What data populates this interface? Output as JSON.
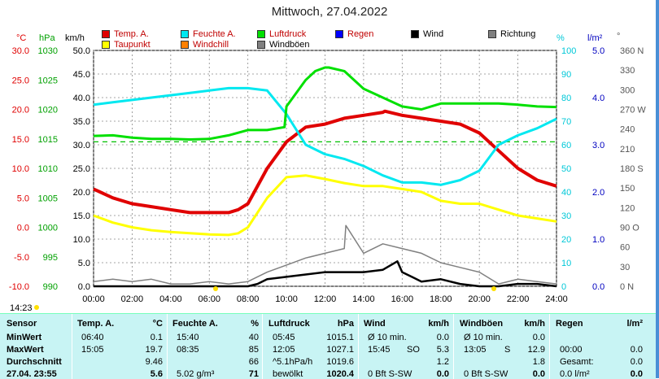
{
  "title": "Mittwoch, 27.04.2022",
  "legend": [
    {
      "label": "Temp. A.",
      "color": "#e00000"
    },
    {
      "label": "Feuchte A.",
      "color": "#00e8f0"
    },
    {
      "label": "Luftdruck",
      "color": "#00e000"
    },
    {
      "label": "Regen",
      "color": "#0000ff"
    },
    {
      "label": "Wind",
      "color": "#000000"
    },
    {
      "label": "Richtung",
      "color": "#808080"
    },
    {
      "label": "Taupunkt",
      "color": "#ffff00"
    },
    {
      "label": "Windchill",
      "color": "#ff8000"
    },
    {
      "label": "Windböen",
      "color": "#808080"
    }
  ],
  "axis_units": {
    "temp": "°C",
    "press": "hPa",
    "wind": "km/h",
    "hum": "%",
    "rain": "l/m²",
    "dir": "°"
  },
  "axis_ticks": {
    "temp": [
      "30.0",
      "25.0",
      "20.0",
      "15.0",
      "10.0",
      "5.0",
      "0.0",
      "-5.0",
      "-10.0"
    ],
    "press": [
      "1030",
      "1025",
      "1020",
      "1015",
      "1010",
      "1005",
      "1000",
      "995",
      "990"
    ],
    "wind": [
      "50.0",
      "45.0",
      "40.0",
      "35.0",
      "30.0",
      "25.0",
      "20.0",
      "15.0",
      "10.0",
      "5.0",
      "0.0"
    ],
    "hum": [
      "100",
      "90",
      "80",
      "70",
      "60",
      "50",
      "40",
      "30",
      "20",
      "10",
      "0"
    ],
    "rain": [
      "5.0",
      "4.0",
      "3.0",
      "2.0",
      "1.0",
      "0.0"
    ],
    "dir": [
      "360 N",
      "330",
      "300",
      "270 W",
      "240",
      "210",
      "180 S",
      "150",
      "120",
      "90 O",
      "60",
      "30",
      "0 N"
    ],
    "x": [
      "00:00",
      "02:00",
      "04:00",
      "06:00",
      "08:00",
      "10:00",
      "12:00",
      "14:00",
      "16:00",
      "18:00",
      "20:00",
      "22:00",
      "24:00"
    ]
  },
  "sunrise_label": "14:23",
  "chart_data": {
    "type": "line",
    "x_unit": "hour",
    "xlim": [
      0,
      24
    ],
    "series": [
      {
        "name": "Temp. A.",
        "axis": "temp",
        "color": "#e00000",
        "x": [
          0,
          1,
          2,
          3,
          4,
          5,
          6,
          7,
          7.5,
          8,
          9,
          10,
          11,
          12,
          13,
          14,
          15,
          15.1,
          16,
          17,
          18,
          19,
          20,
          21,
          22,
          23,
          24
        ],
        "y": [
          6.5,
          5.0,
          4.0,
          3.5,
          3.0,
          2.5,
          2.5,
          2.5,
          3.0,
          4.0,
          10.0,
          14.5,
          17.0,
          17.5,
          18.5,
          19.0,
          19.5,
          19.7,
          19.0,
          18.5,
          18.0,
          17.5,
          16.0,
          13.0,
          10.0,
          8.0,
          7.0
        ]
      },
      {
        "name": "Taupunkt",
        "axis": "temp",
        "color": "#ffff00",
        "x": [
          0,
          1,
          2,
          3,
          4,
          5,
          6,
          7,
          7.5,
          8,
          9,
          10,
          11,
          12,
          13,
          14,
          15,
          16,
          17,
          18,
          19,
          20,
          21,
          22,
          23,
          24
        ],
        "y": [
          2.0,
          0.8,
          0.0,
          -0.5,
          -0.8,
          -1.0,
          -1.2,
          -1.3,
          -1.0,
          0.0,
          5.0,
          8.5,
          8.8,
          8.2,
          7.5,
          7.0,
          7.0,
          6.5,
          6.0,
          4.5,
          4.0,
          4.0,
          3.0,
          2.0,
          1.5,
          1.0
        ]
      },
      {
        "name": "Feuchte A.",
        "axis": "hum",
        "color": "#00e8f0",
        "x": [
          0,
          1,
          2,
          3,
          4,
          5,
          6,
          7,
          8,
          9,
          10,
          11,
          12,
          13,
          14,
          15,
          16,
          17,
          18,
          19,
          20,
          21,
          22,
          23,
          24
        ],
        "y": [
          77,
          78,
          79,
          80,
          81,
          82,
          83,
          84,
          84,
          83,
          73,
          60,
          56,
          54,
          51,
          47,
          44,
          44,
          43,
          45,
          49,
          60,
          64,
          67,
          71
        ]
      },
      {
        "name": "Luftdruck",
        "axis": "press",
        "color": "#00e000",
        "x": [
          0,
          1,
          2,
          3,
          4,
          5,
          6,
          7,
          8,
          9,
          9.9,
          10,
          11,
          11.5,
          12,
          12.2,
          13,
          14,
          15,
          16,
          17,
          18,
          19,
          20,
          21,
          22,
          23,
          24
        ],
        "y": [
          1015.5,
          1015.6,
          1015.2,
          1015.0,
          1015.0,
          1014.9,
          1015.0,
          1015.6,
          1016.5,
          1016.5,
          1017.0,
          1020.5,
          1025,
          1026.5,
          1027.1,
          1027.1,
          1026.5,
          1023.5,
          1022.0,
          1020.5,
          1020.0,
          1021.0,
          1021.0,
          1021.0,
          1021.0,
          1020.8,
          1020.5,
          1020.4
        ]
      },
      {
        "name": "Wind",
        "axis": "wind",
        "color": "#000000",
        "x": [
          0,
          2,
          4,
          6,
          7,
          8,
          8.5,
          9,
          10,
          11,
          12,
          13,
          14,
          15,
          15.75,
          16,
          16.5,
          17,
          18,
          19,
          20,
          21,
          22,
          23,
          24
        ],
        "y": [
          0,
          0,
          0,
          0,
          0,
          0,
          0.5,
          1.5,
          2.0,
          2.5,
          3.0,
          3.0,
          3.0,
          3.5,
          5.3,
          3.0,
          2.0,
          1.0,
          1.5,
          0.5,
          0,
          0,
          0.5,
          0.5,
          0
        ]
      },
      {
        "name": "Windböen",
        "axis": "wind",
        "color": "#808080",
        "x": [
          0,
          1,
          2,
          3,
          4,
          5,
          6,
          7,
          8,
          9,
          10,
          11,
          12,
          13,
          13.08,
          14,
          15,
          16,
          17,
          18,
          19,
          20,
          21,
          22,
          23,
          24
        ],
        "y": [
          1.0,
          1.5,
          1.0,
          1.5,
          0.5,
          0.5,
          1.0,
          0.5,
          1.0,
          3.0,
          4.5,
          6.0,
          7.0,
          8.0,
          12.9,
          7.0,
          9.0,
          8.0,
          7.0,
          5.0,
          4.0,
          3.0,
          0.5,
          1.5,
          1.0,
          0.5
        ]
      }
    ],
    "references": [
      {
        "axis": "press",
        "value": 1014.5,
        "color": "#00c000",
        "style": "dashed"
      }
    ]
  },
  "table": {
    "headers": {
      "sensor": "Sensor",
      "temp": "Temp. A.",
      "temp_u": "°C",
      "hum": "Feuchte A.",
      "hum_u": "%",
      "press": "Luftdruck",
      "press_u": "hPa",
      "wind": "Wind",
      "wind_u": "km/h",
      "gust": "Windböen",
      "gust_u": "km/h",
      "rain": "Regen",
      "rain_u": "l/m²"
    },
    "rows": [
      {
        "label": "MinWert",
        "t_time": "06:40",
        "t_val": "0.1",
        "h_time": "15:40",
        "h_val": "40",
        "p_time": "05:45",
        "p_val": "1015.1",
        "w_time": "Ø 10 min.",
        "w_val": "0.0",
        "g_time": "Ø 10 min.",
        "g_val": "0.0",
        "r_time": "",
        "r_val": ""
      },
      {
        "label": "MaxWert",
        "t_time": "15:05",
        "t_val": "19.7",
        "h_time": "08:35",
        "h_val": "85",
        "p_time": "12:05",
        "p_val": "1027.1",
        "w_time": "15:45",
        "w_dir": "SO",
        "w_val": "5.3",
        "g_time": "13:05",
        "g_dir": "S",
        "g_val": "12.9",
        "r_time": "00:00",
        "r_val": "0.0"
      },
      {
        "label": "Durchschnitt",
        "t_time": "",
        "t_val": "9.46",
        "h_time": "",
        "h_val": "66",
        "p_time": "^5.1hPa/h",
        "p_val": "1019.6",
        "w_time": "",
        "w_val": "1.2",
        "g_time": "",
        "g_val": "1.8",
        "r_time": "Gesamt:",
        "r_val": "0.0"
      },
      {
        "label": "27.04. 23:55",
        "t_time": "",
        "t_val": "5.6",
        "h_time": "5.02 g/m³",
        "h_val": "71",
        "p_time": "bewölkt",
        "p_val": "1020.4",
        "w_time": "0 Bft S-SW",
        "w_val": "0.0",
        "g_time": "0 Bft S-SW",
        "g_val": "0.0",
        "r_time": "0.0 l/m²",
        "r_val": "0.0"
      }
    ]
  }
}
